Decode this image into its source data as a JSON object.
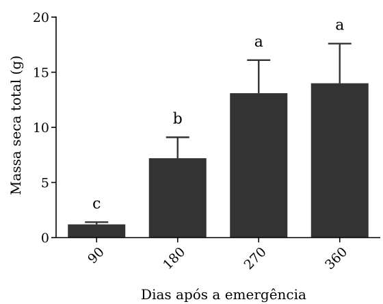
{
  "chart_data": {
    "type": "bar",
    "xlabel": "Dias após a emergência",
    "ylabel": "Massa seca total (g)",
    "categories": [
      "90",
      "180",
      "270",
      "360"
    ],
    "series": [
      {
        "values": [
          1.2,
          7.2,
          13.1,
          14.0
        ],
        "error_upper": [
          1.4,
          9.1,
          16.1,
          17.6
        ],
        "significance_labels": [
          "c",
          "b",
          "a",
          "a"
        ]
      }
    ],
    "ylim": [
      0,
      20
    ],
    "yticks": [
      "0",
      "5",
      "10",
      "15",
      "20"
    ],
    "grid": false,
    "legend": "none",
    "colors": {
      "bar": "#333333",
      "axis": "#000000"
    }
  }
}
